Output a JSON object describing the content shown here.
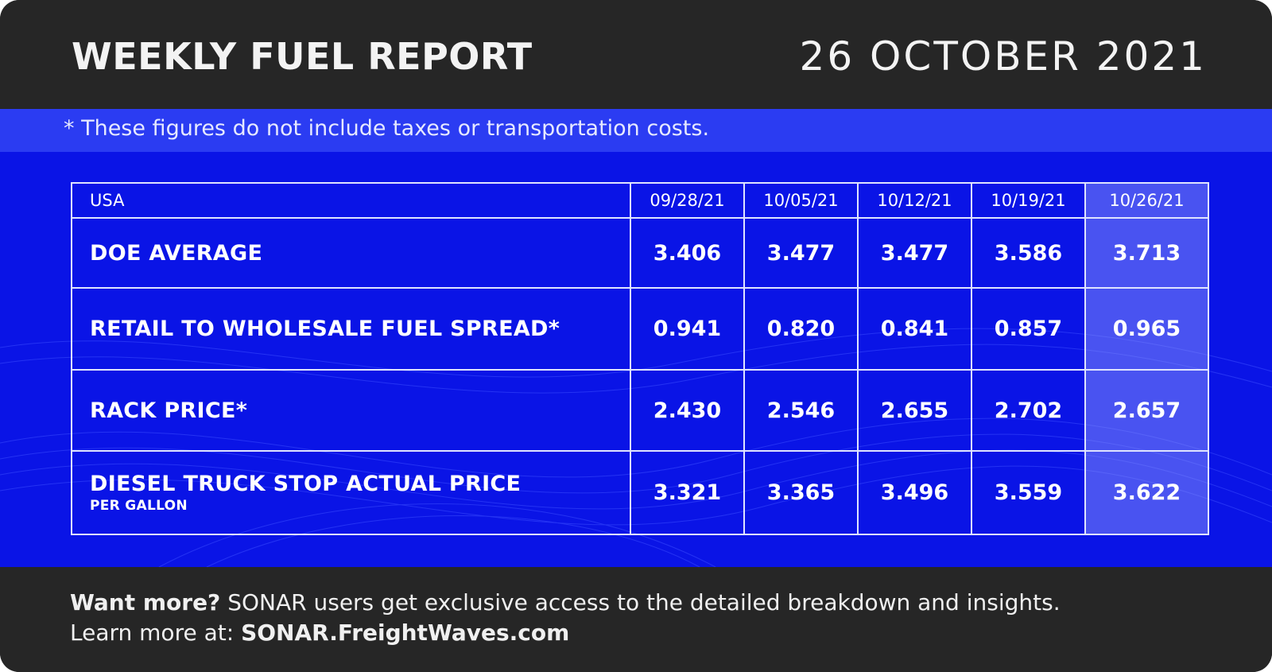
{
  "header": {
    "title": "WEEKLY FUEL REPORT",
    "date": "26 OCTOBER 2021"
  },
  "note": "* These figures do not include taxes or transportation costs.",
  "chart_data": {
    "type": "table",
    "region": "USA",
    "columns": [
      "09/28/21",
      "10/05/21",
      "10/12/21",
      "10/19/21",
      "10/26/21"
    ],
    "highlighted_column": "10/26/21",
    "rows": [
      {
        "label": "DOE AVERAGE",
        "sublabel": "",
        "values": [
          "3.406",
          "3.477",
          "3.477",
          "3.586",
          "3.713"
        ]
      },
      {
        "label": "RETAIL TO WHOLESALE FUEL SPREAD*",
        "sublabel": "",
        "values": [
          "0.941",
          "0.820",
          "0.841",
          "0.857",
          "0.965"
        ]
      },
      {
        "label": "RACK PRICE*",
        "sublabel": "",
        "values": [
          "2.430",
          "2.546",
          "2.655",
          "2.702",
          "2.657"
        ]
      },
      {
        "label": "DIESEL TRUCK STOP ACTUAL PRICE",
        "sublabel": "PER GALLON",
        "values": [
          "3.321",
          "3.365",
          "3.496",
          "3.559",
          "3.622"
        ]
      }
    ]
  },
  "footer": {
    "line1_bold": "Want more?",
    "line1_rest": " SONAR users get exclusive access to the detailed breakdown and insights.",
    "line2_rest": "Learn more at: ",
    "line2_bold": "SONAR.FreightWaves.com"
  },
  "colors": {
    "dark": "#262626",
    "blue": "#0a14e6",
    "note_band": "#2b3cf2"
  }
}
